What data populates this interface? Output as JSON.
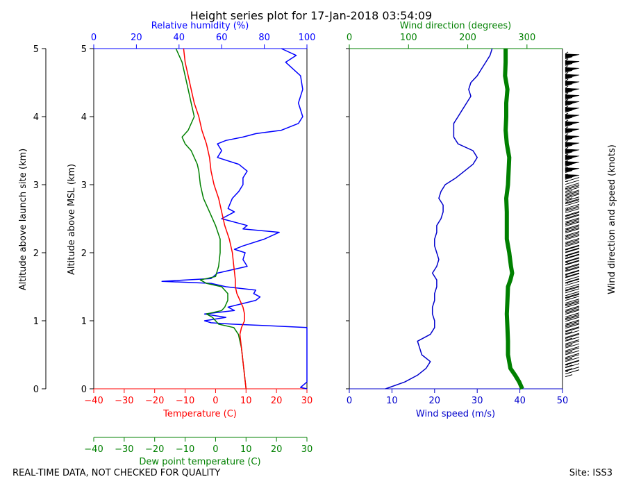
{
  "chart_data": {
    "type": "line",
    "title": "Height series plot for 17-Jan-2018 03:54:09",
    "footer_left": "REAL-TIME DATA, NOT CHECKED FOR QUALITY",
    "footer_right": "Site: ISS3",
    "colors": {
      "temp": "#ff0000",
      "dewpoint": "#008000",
      "rh": "#0000ff",
      "wspd": "#0000cc",
      "wdir": "#008000",
      "axis": "#000000"
    },
    "left_panel": {
      "y_outer_label": "Altitude above launch site (km)",
      "y_label": "Altitude above MSL (km)",
      "ylim": [
        0,
        5
      ],
      "y_ticks": [
        "0",
        "1",
        "2",
        "3",
        "4",
        "5"
      ],
      "temperature": {
        "label": "Temperature (C)",
        "xlim": [
          -40,
          30
        ],
        "ticks": [
          "−40",
          "−30",
          "−20",
          "−10",
          "0",
          "10",
          "20",
          "30"
        ],
        "alt": [
          0,
          0.2,
          0.4,
          0.6,
          0.8,
          0.9,
          1.0,
          1.1,
          1.2,
          1.3,
          1.4,
          1.5,
          1.6,
          1.8,
          2.0,
          2.2,
          2.4,
          2.6,
          2.8,
          3.0,
          3.2,
          3.4,
          3.6,
          3.8,
          4.0,
          4.2,
          4.4,
          4.6,
          4.8,
          5.0
        ],
        "values": [
          10,
          9.5,
          9,
          8.5,
          8,
          8.5,
          9.5,
          9.5,
          9,
          8,
          7,
          6.5,
          6.5,
          6,
          5.5,
          4.5,
          3,
          2,
          1,
          -0.5,
          -1.5,
          -2,
          -3,
          -4.5,
          -5.5,
          -7,
          -8,
          -9,
          -10,
          -10.5
        ]
      },
      "dewpoint": {
        "label": "Dew point temperature (C)",
        "xlim": [
          -40,
          30
        ],
        "ticks": [
          "−40",
          "−30",
          "−20",
          "−10",
          "0",
          "10",
          "20",
          "30"
        ],
        "alt": [
          0,
          0.2,
          0.4,
          0.6,
          0.8,
          0.9,
          0.95,
          1.0,
          1.05,
          1.1,
          1.15,
          1.2,
          1.3,
          1.4,
          1.5,
          1.55,
          1.6,
          1.65,
          1.8,
          2.0,
          2.2,
          2.4,
          2.6,
          2.8,
          3.0,
          3.2,
          3.3,
          3.5,
          3.6,
          3.7,
          3.8,
          4.0,
          4.2,
          4.4,
          4.6,
          4.8,
          5.0
        ],
        "values": [
          10,
          9.5,
          9,
          8.5,
          7.5,
          6,
          1,
          0,
          -1,
          -3,
          2,
          3,
          4,
          4,
          2,
          -3,
          -5,
          0,
          1,
          1.5,
          1.5,
          0,
          -2,
          -4,
          -5,
          -5.5,
          -6,
          -8,
          -10,
          -11,
          -9,
          -7,
          -8,
          -9,
          -10,
          -11,
          -13
        ]
      },
      "relative_humidity": {
        "label": "Relative humidity (%)",
        "xlim": [
          0,
          100
        ],
        "ticks": [
          "0",
          "20",
          "40",
          "60",
          "80",
          "100"
        ],
        "alt": [
          0,
          0.02,
          0.1,
          0.9,
          0.93,
          0.95,
          0.97,
          1.0,
          1.05,
          1.1,
          1.15,
          1.2,
          1.3,
          1.35,
          1.4,
          1.45,
          1.5,
          1.55,
          1.58,
          1.62,
          1.7,
          1.8,
          1.9,
          2.0,
          2.05,
          2.1,
          2.2,
          2.3,
          2.35,
          2.4,
          2.5,
          2.6,
          2.65,
          2.8,
          2.9,
          3.0,
          3.1,
          3.2,
          3.3,
          3.4,
          3.5,
          3.6,
          3.65,
          3.7,
          3.75,
          3.8,
          3.9,
          4.0,
          4.2,
          4.4,
          4.6,
          4.8,
          4.9,
          5.0
        ],
        "values": [
          100,
          97,
          100,
          100,
          80,
          65,
          55,
          52,
          62,
          52,
          66,
          63,
          76,
          78,
          75,
          76,
          62,
          55,
          32,
          55,
          58,
          72,
          70,
          71,
          66,
          70,
          80,
          87,
          70,
          72,
          60,
          66,
          63,
          65,
          68,
          70,
          70,
          72,
          68,
          58,
          60,
          58,
          62,
          70,
          76,
          88,
          96,
          98,
          96,
          98,
          97,
          90,
          95,
          88
        ]
      }
    },
    "right_panel": {
      "ylim": [
        0,
        5
      ],
      "wind_speed": {
        "label": "Wind speed (m/s)",
        "xlim": [
          0,
          50
        ],
        "ticks": [
          "0",
          "10",
          "20",
          "30",
          "40",
          "50"
        ],
        "alt": [
          0,
          0.1,
          0.2,
          0.3,
          0.4,
          0.5,
          0.6,
          0.7,
          0.8,
          0.9,
          1.0,
          1.1,
          1.2,
          1.3,
          1.4,
          1.5,
          1.6,
          1.7,
          1.8,
          1.9,
          2.0,
          2.1,
          2.2,
          2.3,
          2.4,
          2.5,
          2.6,
          2.7,
          2.8,
          2.9,
          3.0,
          3.1,
          3.2,
          3.3,
          3.4,
          3.5,
          3.6,
          3.7,
          3.8,
          3.9,
          4.0,
          4.1,
          4.2,
          4.3,
          4.4,
          4.5,
          4.6,
          4.7,
          4.8,
          4.9,
          5.0
        ],
        "values": [
          8.5,
          13,
          16,
          18,
          19,
          17,
          16.5,
          16,
          19,
          20,
          20,
          19.5,
          19.5,
          20,
          20,
          20.5,
          20.5,
          19.5,
          20.5,
          21,
          20.5,
          20,
          20,
          20.5,
          20.5,
          21.5,
          22,
          22,
          21,
          21.5,
          22.5,
          25,
          27,
          29,
          30,
          29,
          25.5,
          24.5,
          24.5,
          24.5,
          25.5,
          26.5,
          27.5,
          28.5,
          28,
          28.5,
          30,
          31,
          32,
          33,
          33.5
        ]
      },
      "wind_direction": {
        "label": "Wind direction (degrees)",
        "xlim": [
          0,
          360
        ],
        "ticks": [
          "0",
          "100",
          "200",
          "300"
        ],
        "alt": [
          0,
          0.1,
          0.2,
          0.3,
          0.5,
          0.7,
          0.9,
          1.1,
          1.3,
          1.5,
          1.6,
          1.7,
          1.8,
          2.0,
          2.2,
          2.4,
          2.6,
          2.8,
          3.0,
          3.2,
          3.4,
          3.6,
          3.8,
          4.0,
          4.2,
          4.4,
          4.6,
          4.8,
          5.0
        ],
        "values": [
          292,
          287,
          280,
          272,
          268,
          268,
          267,
          266,
          267,
          268,
          272,
          275,
          273,
          270,
          266,
          266,
          266,
          265,
          268,
          269,
          270,
          266,
          264,
          265,
          265,
          267,
          263,
          264,
          264
        ]
      },
      "barbs": {
        "label": "Wind direction and speed (knots)",
        "alt": [
          0.25,
          0.35,
          0.45,
          0.55,
          0.65,
          0.75,
          0.85,
          0.95,
          1.05,
          1.15,
          1.25,
          1.35,
          1.45,
          1.55,
          1.65,
          1.75,
          1.85,
          1.95,
          2.05,
          2.15,
          2.25,
          2.35,
          2.45,
          2.55,
          2.65,
          2.75,
          2.85,
          2.95,
          3.05,
          3.15,
          3.25,
          3.35,
          3.45,
          3.55,
          3.65,
          3.75,
          3.85,
          3.95,
          4.05,
          4.15,
          4.25,
          4.35,
          4.45,
          4.55,
          4.65,
          4.75,
          4.85,
          4.95
        ],
        "speed_kt": [
          25,
          25,
          35,
          35,
          35,
          35,
          35,
          35,
          40,
          40,
          40,
          40,
          40,
          40,
          40,
          40,
          40,
          40,
          40,
          40,
          40,
          40,
          40,
          40,
          40,
          40,
          40,
          45,
          45,
          55,
          55,
          55,
          55,
          55,
          55,
          55,
          55,
          55,
          55,
          55,
          55,
          55,
          55,
          55,
          55,
          55,
          55,
          55
        ],
        "direction_deg": [
          272,
          270,
          268,
          268,
          268,
          268,
          267,
          266,
          266,
          267,
          267,
          268,
          270,
          272,
          275,
          273,
          272,
          270,
          268,
          266,
          266,
          266,
          266,
          266,
          265,
          266,
          268,
          268,
          269,
          270,
          270,
          268,
          266,
          264,
          264,
          264,
          265,
          265,
          266,
          267,
          266,
          264,
          263,
          264,
          264,
          264,
          264,
          264
        ]
      }
    }
  }
}
